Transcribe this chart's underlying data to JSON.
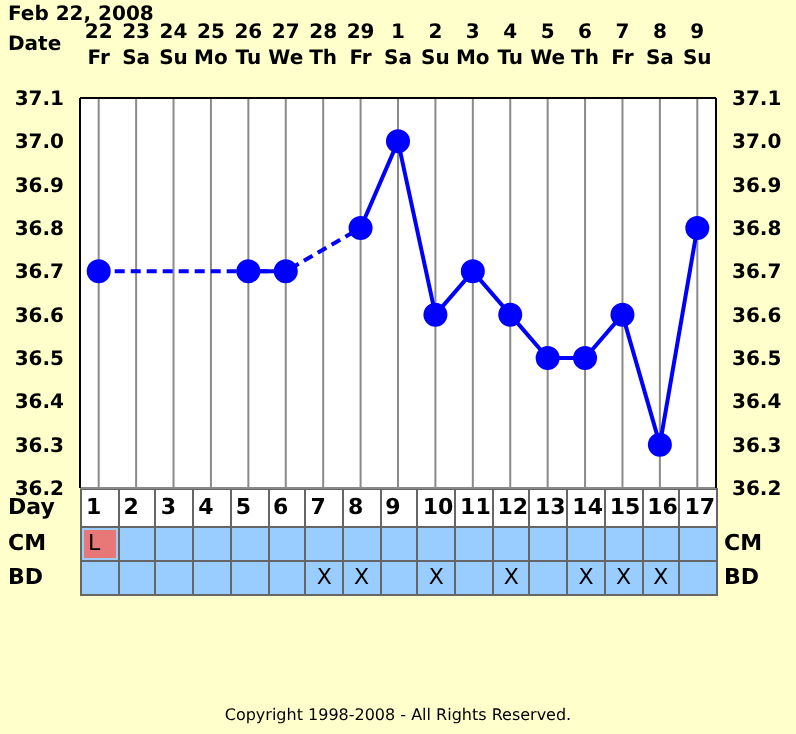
{
  "chart_data": [
    {
      "type": "line",
      "title": "Feb 22, 2008",
      "xlabel": "Date",
      "x2label": "Day",
      "categories": [
        "22 Fr",
        "23 Sa",
        "24 Su",
        "25 Mo",
        "26 Tu",
        "27 We",
        "28 Th",
        "29 Fr",
        "1 Sa",
        "2 Su",
        "3 Mo",
        "4 Tu",
        "5 We",
        "6 Th",
        "7 Fr",
        "8 Sa",
        "9 Su"
      ],
      "x2lim": [
        0.5,
        17.5
      ],
      "x2ticks": [
        1,
        2,
        3,
        4,
        5,
        6,
        7,
        8,
        9,
        10,
        11,
        12,
        13,
        14,
        15,
        16,
        17
      ],
      "series": [
        {
          "color": "#0000ff",
          "line_style": "dashed",
          "x": [
            "22 Fr",
            "26 Tu",
            "27 We",
            "29 Fr"
          ],
          "values": [
            36.7,
            36.7,
            36.7,
            36.8
          ]
        },
        {
          "color": "#0000ff",
          "line_style": "solid",
          "marker": "circle",
          "values": [
            36.7,
            null,
            null,
            null,
            36.7,
            36.7,
            null,
            36.8,
            37.0,
            36.6,
            36.7,
            36.6,
            36.5,
            36.5,
            36.6,
            36.3,
            36.8
          ]
        }
      ],
      "ylim": [
        36.2,
        37.1
      ],
      "yticks": [
        {
          "value": 36.2,
          "label": "36.2"
        },
        {
          "value": 36.3,
          "label": "36.3"
        },
        {
          "value": 36.4,
          "label": "36.4"
        },
        {
          "value": 36.5,
          "label": "36.5"
        },
        {
          "value": 36.6,
          "label": "36.6"
        },
        {
          "value": 36.7,
          "label": "36.7"
        },
        {
          "value": 36.8,
          "label": "36.8"
        },
        {
          "value": 36.9,
          "label": "36.9"
        },
        {
          "value": 37.0,
          "label": "37.0"
        },
        {
          "value": 37.1,
          "label": "37.1"
        }
      ],
      "y2lim": [
        36.2,
        37.1
      ],
      "y2ticks": [
        {
          "value": 36.2,
          "label": "36.2"
        },
        {
          "value": 36.3,
          "label": "36.3"
        },
        {
          "value": 36.4,
          "label": "36.4"
        },
        {
          "value": 36.5,
          "label": "36.5"
        },
        {
          "value": 36.6,
          "label": "36.6"
        },
        {
          "value": 36.7,
          "label": "36.7"
        },
        {
          "value": 36.8,
          "label": "36.8"
        },
        {
          "value": 36.9,
          "label": "36.9"
        },
        {
          "value": 37.0,
          "label": "37.0"
        },
        {
          "value": 37.1,
          "label": "37.1"
        }
      ],
      "grid": true
    },
    {
      "type": "other",
      "categories": [
        null,
        null,
        null,
        null,
        null,
        null,
        null,
        null,
        null,
        null,
        null,
        null,
        null,
        null,
        null,
        null,
        null
      ],
      "y_categories": [
        "CM",
        "BD"
      ],
      "y2_categories": [
        "CM",
        "BD"
      ],
      "cell_labels": [
        [
          "L",
          null,
          null,
          null,
          null,
          null,
          null,
          null,
          null,
          null,
          null,
          null,
          null,
          null,
          null,
          null,
          null
        ],
        [
          null,
          null,
          null,
          null,
          null,
          null,
          "X",
          "X",
          null,
          "X",
          null,
          "X",
          null,
          "X",
          "X",
          "X",
          null
        ]
      ],
      "annotations": [
        "Copyright 1998-2008 - All Rights Reserved."
      ]
    }
  ]
}
